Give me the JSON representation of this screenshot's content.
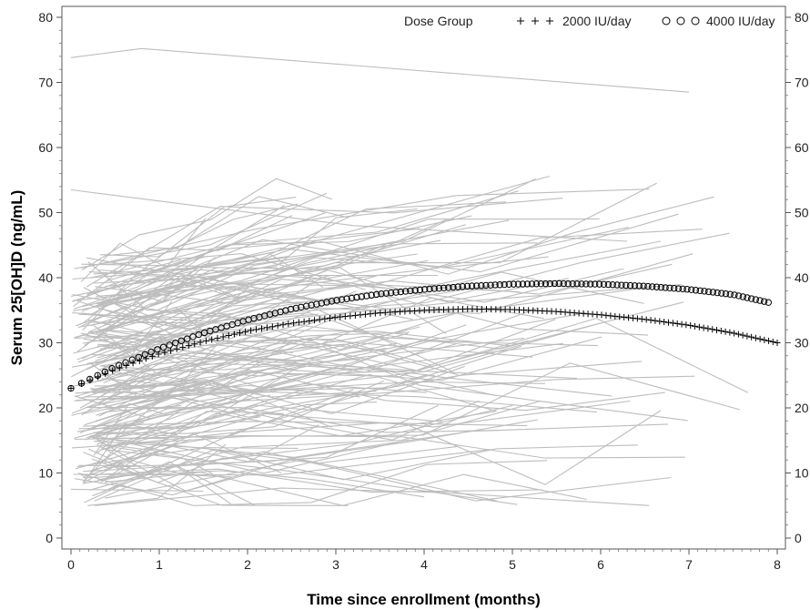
{
  "chart_data": {
    "type": "line",
    "xlabel": "Time since enrollment (months)",
    "ylabel": "Serum 25[OH]D (ng/mL)",
    "xlim": [
      0,
      8
    ],
    "ylim": [
      0,
      80
    ],
    "xticks": [
      "0",
      "1",
      "2",
      "3",
      "4",
      "5",
      "6",
      "7",
      "8"
    ],
    "yticks": [
      "0",
      "10",
      "20",
      "30",
      "40",
      "50",
      "60",
      "70",
      "80"
    ],
    "legend": {
      "title": "Dose Group",
      "position": "top-right",
      "items": [
        {
          "label": "2000 IU/day",
          "marker": "plus"
        },
        {
          "label": "4000 IU/day",
          "marker": "circle"
        }
      ]
    },
    "series": [
      {
        "name": "2000 IU/day",
        "marker": "plus",
        "color": "#000000",
        "x": [
          0,
          0.5,
          1,
          1.5,
          2,
          2.5,
          3,
          3.5,
          4,
          4.5,
          5,
          5.5,
          6,
          6.5,
          7,
          7.5,
          8
        ],
        "y": [
          23.0,
          25.9,
          28.3,
          30.2,
          31.8,
          33.0,
          33.9,
          34.6,
          35.0,
          35.2,
          35.1,
          34.8,
          34.3,
          33.6,
          32.7,
          31.5,
          30.0
        ]
      },
      {
        "name": "4000 IU/day",
        "marker": "circle",
        "color": "#000000",
        "x": [
          0,
          0.5,
          1,
          1.5,
          2,
          2.5,
          3,
          3.5,
          4,
          4.5,
          5,
          5.5,
          6,
          6.5,
          7,
          7.5,
          7.9
        ],
        "y": [
          23.0,
          26.3,
          29.1,
          31.5,
          33.5,
          35.2,
          36.5,
          37.5,
          38.2,
          38.7,
          39.0,
          39.1,
          39.0,
          38.7,
          38.2,
          37.4,
          36.2
        ]
      }
    ],
    "background_trajectories": {
      "color": "#bdbdbd",
      "count": 210,
      "note_hidden": true
    },
    "grid": false,
    "mirror_right_axis": true
  }
}
